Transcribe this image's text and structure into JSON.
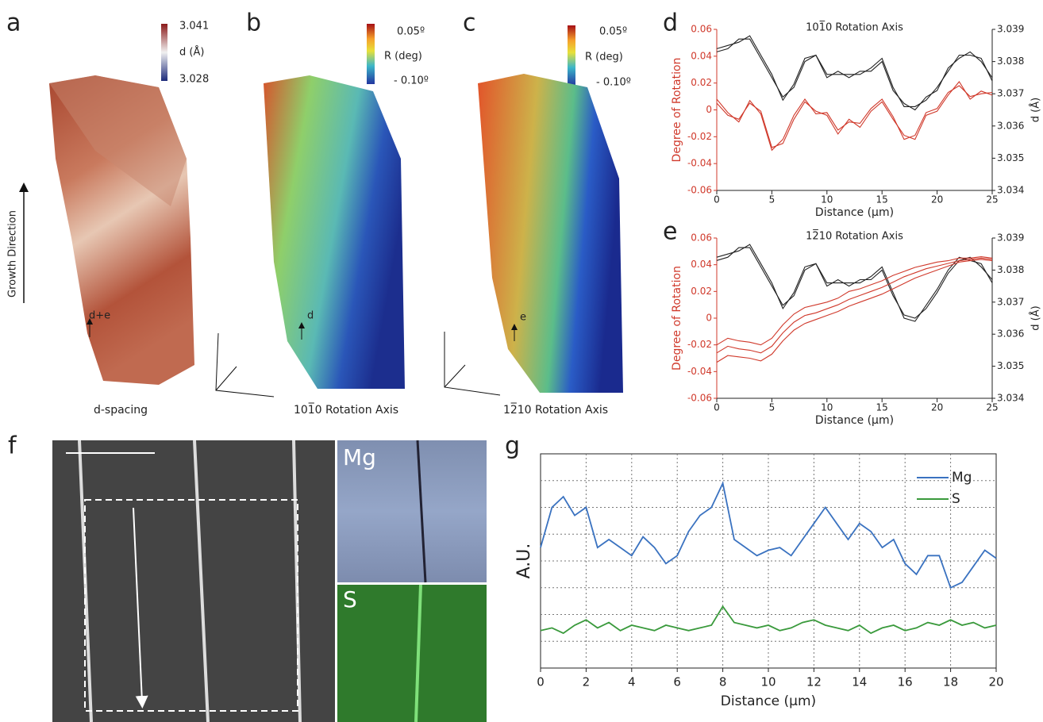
{
  "panels": {
    "a": {
      "label": "a",
      "caption": "d-spacing",
      "colorbar_title": "d (Å)",
      "colorbar_max": 3.041,
      "colorbar_min": 3.028,
      "marker": "d+e",
      "axis_label": "Growth Direction"
    },
    "b": {
      "label": "b",
      "caption": "101̅0 Rotation Axis",
      "colorbar_title": "R (deg)",
      "colorbar_max": "0.05º",
      "colorbar_min": "- 0.10º",
      "marker": "d"
    },
    "c": {
      "label": "c",
      "caption": "12̅10 Rotation Axis",
      "colorbar_title": "R (deg)",
      "colorbar_max": "0.05º",
      "colorbar_min": "- 0.10º",
      "marker": "e"
    },
    "d": {
      "label": "d"
    },
    "e": {
      "label": "e"
    },
    "f": {
      "label": "f",
      "map_labels": [
        "Mg",
        "S"
      ]
    },
    "g": {
      "label": "g"
    }
  },
  "chart_data": [
    {
      "type": "line",
      "title": "101̅0 Rotation Axis",
      "xlabel": "Distance (μm)",
      "ylabel": "Degree of Rotation",
      "y2label": "d (Å)",
      "y_axis_color": "#d0392b",
      "x": [
        0,
        1,
        2,
        3,
        4,
        5,
        6,
        7,
        8,
        9,
        10,
        11,
        12,
        13,
        14,
        15,
        16,
        17,
        18,
        19,
        20,
        21,
        22,
        23,
        24,
        25
      ],
      "xlim": [
        0,
        25
      ],
      "xticks": [
        0,
        5,
        10,
        15,
        20,
        25
      ],
      "ylim": [
        -0.06,
        0.06
      ],
      "yticks": [
        -0.06,
        -0.04,
        -0.02,
        0,
        0.02,
        0.04,
        0.06
      ],
      "y2lim": [
        3.034,
        3.039
      ],
      "y2ticks": [
        3.034,
        3.035,
        3.036,
        3.037,
        3.038,
        3.039
      ],
      "series": [
        {
          "color": "#222222",
          "axis": "y2",
          "values": [
            3.0384,
            3.0385,
            3.0386,
            3.0388,
            3.0382,
            3.0376,
            3.0368,
            3.0373,
            3.0381,
            3.0382,
            3.0376,
            3.0376,
            3.0376,
            3.0376,
            3.0378,
            3.0381,
            3.0372,
            3.0366,
            3.0366,
            3.0368,
            3.0372,
            3.0377,
            3.0382,
            3.0382,
            3.0381,
            3.0374
          ]
        },
        {
          "color": "#222222",
          "axis": "y2",
          "values": [
            3.0383,
            3.0384,
            3.0387,
            3.0387,
            3.0381,
            3.0375,
            3.0369,
            3.0372,
            3.038,
            3.0382,
            3.0375,
            3.0377,
            3.0375,
            3.0377,
            3.0377,
            3.038,
            3.0371,
            3.0367,
            3.0365,
            3.0369,
            3.0371,
            3.0378,
            3.0381,
            3.0383,
            3.038,
            3.0375
          ]
        },
        {
          "color": "#d0392b",
          "values": [
            0.005,
            -0.004,
            -0.007,
            0.005,
            -0.001,
            -0.028,
            -0.025,
            -0.007,
            0.006,
            -0.001,
            -0.004,
            -0.018,
            -0.007,
            -0.013,
            -0.001,
            0.006,
            -0.007,
            -0.019,
            -0.022,
            -0.004,
            -0.001,
            0.011,
            0.021,
            0.008,
            0.014,
            0.011
          ]
        },
        {
          "color": "#d0392b",
          "values": [
            0.008,
            -0.002,
            -0.009,
            0.007,
            -0.003,
            -0.03,
            -0.022,
            -0.004,
            0.008,
            -0.003,
            -0.002,
            -0.015,
            -0.009,
            -0.01,
            0.001,
            0.008,
            -0.005,
            -0.022,
            -0.019,
            -0.002,
            0.001,
            0.013,
            0.018,
            0.01,
            0.012,
            0.013
          ]
        }
      ]
    },
    {
      "type": "line",
      "title": "12̅10 Rotation Axis",
      "xlabel": "Distance (μm)",
      "ylabel": "Degree of Rotation",
      "y2label": "d (Å)",
      "y_axis_color": "#d0392b",
      "x": [
        0,
        1,
        2,
        3,
        4,
        5,
        6,
        7,
        8,
        9,
        10,
        11,
        12,
        13,
        14,
        15,
        16,
        17,
        18,
        19,
        20,
        21,
        22,
        23,
        24,
        25
      ],
      "xlim": [
        0,
        25
      ],
      "xticks": [
        0,
        5,
        10,
        15,
        20,
        25
      ],
      "ylim": [
        -0.06,
        0.06
      ],
      "yticks": [
        -0.06,
        -0.04,
        -0.02,
        0,
        0.02,
        0.04,
        0.06
      ],
      "y2lim": [
        3.034,
        3.039
      ],
      "y2ticks": [
        3.034,
        3.035,
        3.036,
        3.037,
        3.038,
        3.039
      ],
      "series": [
        {
          "color": "#222222",
          "axis": "y2",
          "values": [
            3.0384,
            3.0385,
            3.0386,
            3.0388,
            3.0382,
            3.0376,
            3.0368,
            3.0373,
            3.0381,
            3.0382,
            3.0376,
            3.0376,
            3.0376,
            3.0376,
            3.0378,
            3.0381,
            3.0373,
            3.0365,
            3.0364,
            3.0369,
            3.0374,
            3.038,
            3.0384,
            3.0383,
            3.0382,
            3.0376
          ]
        },
        {
          "color": "#222222",
          "axis": "y2",
          "values": [
            3.0383,
            3.0384,
            3.0387,
            3.0387,
            3.0381,
            3.0375,
            3.0369,
            3.0372,
            3.038,
            3.0382,
            3.0375,
            3.0377,
            3.0375,
            3.0377,
            3.0377,
            3.038,
            3.0372,
            3.0366,
            3.0365,
            3.0368,
            3.0373,
            3.0379,
            3.0383,
            3.0384,
            3.0381,
            3.0377
          ]
        },
        {
          "color": "#d0392b",
          "values": [
            -0.02,
            -0.015,
            -0.017,
            -0.018,
            -0.02,
            -0.015,
            -0.005,
            0.003,
            0.008,
            0.01,
            0.012,
            0.015,
            0.02,
            0.022,
            0.025,
            0.028,
            0.032,
            0.035,
            0.038,
            0.04,
            0.042,
            0.043,
            0.045,
            0.045,
            0.046,
            0.045
          ]
        },
        {
          "color": "#d0392b",
          "values": [
            -0.026,
            -0.021,
            -0.023,
            -0.024,
            -0.026,
            -0.021,
            -0.011,
            -0.003,
            0.002,
            0.004,
            0.007,
            0.01,
            0.014,
            0.017,
            0.02,
            0.023,
            0.027,
            0.031,
            0.034,
            0.037,
            0.039,
            0.041,
            0.043,
            0.044,
            0.045,
            0.044
          ]
        },
        {
          "color": "#d0392b",
          "values": [
            -0.033,
            -0.028,
            -0.029,
            -0.03,
            -0.032,
            -0.027,
            -0.017,
            -0.009,
            -0.004,
            -0.001,
            0.002,
            0.005,
            0.009,
            0.012,
            0.015,
            0.018,
            0.022,
            0.026,
            0.03,
            0.033,
            0.036,
            0.039,
            0.042,
            0.043,
            0.044,
            0.043
          ]
        }
      ]
    },
    {
      "type": "line",
      "xlabel": "Distance (μm)",
      "ylabel": "A.U.",
      "grid": true,
      "x": [
        0,
        0.5,
        1,
        1.5,
        2,
        2.5,
        3,
        3.5,
        4,
        4.5,
        5,
        5.5,
        6,
        6.5,
        7,
        7.5,
        8,
        8.5,
        9,
        9.5,
        10,
        10.5,
        11,
        11.5,
        12,
        12.5,
        13,
        13.5,
        14,
        14.5,
        15,
        15.5,
        16,
        16.5,
        17,
        17.5,
        18,
        18.5,
        19,
        19.5,
        20
      ],
      "xlim": [
        0,
        20
      ],
      "xticks": [
        0,
        2,
        4,
        6,
        8,
        10,
        12,
        14,
        16,
        18,
        20
      ],
      "ylim": [
        0,
        8
      ],
      "yticks": [
        1,
        2,
        3,
        4,
        5,
        6,
        7
      ],
      "series": [
        {
          "name": "Mg",
          "color": "#3a72c0",
          "values": [
            4.5,
            6.0,
            6.4,
            5.7,
            6.0,
            4.5,
            4.8,
            4.5,
            4.2,
            4.9,
            4.5,
            3.9,
            4.2,
            5.1,
            5.7,
            6.0,
            6.9,
            4.8,
            4.5,
            4.2,
            4.4,
            4.5,
            4.2,
            4.8,
            5.4,
            6.0,
            5.4,
            4.8,
            5.4,
            5.1,
            4.5,
            4.8,
            3.9,
            3.5,
            4.2,
            4.2,
            3.0,
            3.2,
            3.8,
            4.4,
            4.1
          ]
        },
        {
          "name": "S",
          "color": "#3a9a3c",
          "values": [
            1.4,
            1.5,
            1.3,
            1.6,
            1.8,
            1.5,
            1.7,
            1.4,
            1.6,
            1.5,
            1.4,
            1.6,
            1.5,
            1.4,
            1.5,
            1.6,
            2.3,
            1.7,
            1.6,
            1.5,
            1.6,
            1.4,
            1.5,
            1.7,
            1.8,
            1.6,
            1.5,
            1.4,
            1.6,
            1.3,
            1.5,
            1.6,
            1.4,
            1.5,
            1.7,
            1.6,
            1.8,
            1.6,
            1.7,
            1.5,
            1.6
          ]
        }
      ],
      "legend": "upper right"
    }
  ]
}
